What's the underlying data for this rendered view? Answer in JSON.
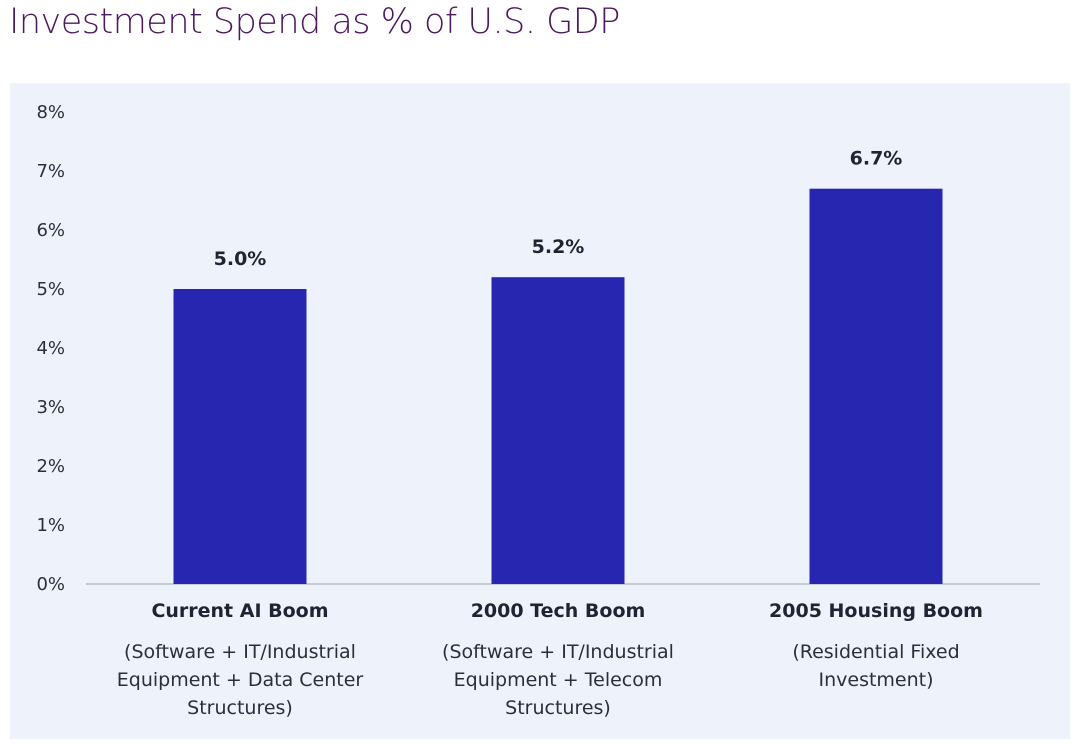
{
  "page": {
    "title": "Investment Spend as % of U.S. GDP"
  },
  "chart_data": {
    "type": "bar",
    "title": "Investment Spend as % of U.S. GDP",
    "xlabel": "",
    "ylabel": "",
    "ylim": [
      0,
      8
    ],
    "yticks": [
      "0%",
      "1%",
      "2%",
      "3%",
      "4%",
      "5%",
      "6%",
      "7%",
      "8%"
    ],
    "grid": false,
    "bar_color": "#2626b0",
    "categories": [
      "Current AI Boom",
      "2000 Tech Boom",
      "2005 Housing Boom"
    ],
    "category_details": [
      [
        "(Software + IT/Industrial",
        "Equipment + Data Center",
        "Structures)"
      ],
      [
        "(Software + IT/Industrial",
        "Equipment + Telecom",
        "Structures)"
      ],
      [
        "(Residential Fixed",
        "Investment)"
      ]
    ],
    "values": [
      5.0,
      5.2,
      6.7
    ],
    "value_labels": [
      "5.0%",
      "5.2%",
      "6.7%"
    ]
  }
}
